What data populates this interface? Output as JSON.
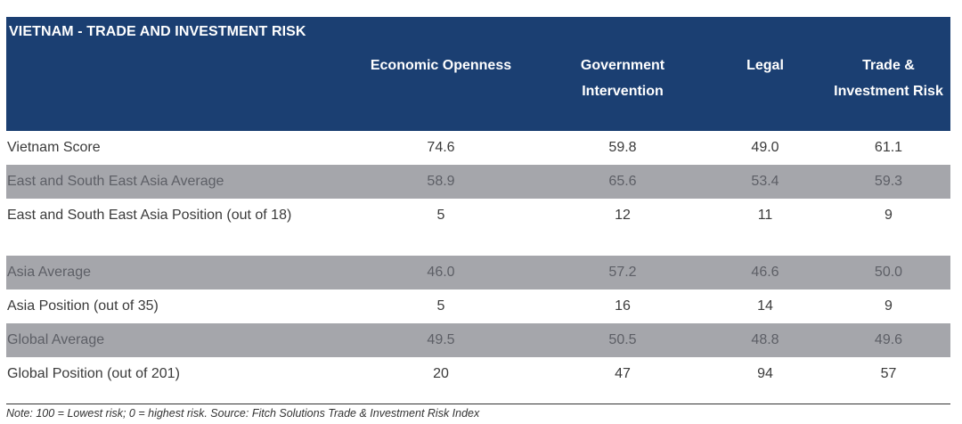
{
  "table": {
    "title": "VIETNAM - TRADE AND INVESTMENT RISK",
    "headers": [
      "Economic Openness",
      "Government Intervention",
      "Legal",
      "Trade & Investment Risk"
    ],
    "rows": [
      {
        "label": "Vietnam Score",
        "values": [
          "74.6",
          "59.8",
          "49.0",
          "61.1"
        ]
      },
      {
        "label": "East and South East Asia Average",
        "values": [
          "58.9",
          "65.6",
          "53.4",
          "59.3"
        ]
      },
      {
        "label": "East and South East Asia Position (out of 18)",
        "values": [
          "5",
          "12",
          "11",
          "9"
        ]
      },
      {
        "label": "Asia Average",
        "values": [
          "46.0",
          "57.2",
          "46.6",
          "50.0"
        ]
      },
      {
        "label": "Asia Position (out of 35)",
        "values": [
          "5",
          "16",
          "14",
          "9"
        ]
      },
      {
        "label": "Global Average",
        "values": [
          "49.5",
          "50.5",
          "48.8",
          "49.6"
        ]
      },
      {
        "label": "Global Position (out of 201)",
        "values": [
          "20",
          "47",
          "94",
          "57"
        ]
      }
    ],
    "note": "Note: 100 = Lowest risk; 0 = highest risk. Source: Fitch Solutions Trade & Investment Risk Index"
  },
  "colors": {
    "header_bg": "#1b3f72",
    "shade_bg": "#a5a6ab"
  }
}
